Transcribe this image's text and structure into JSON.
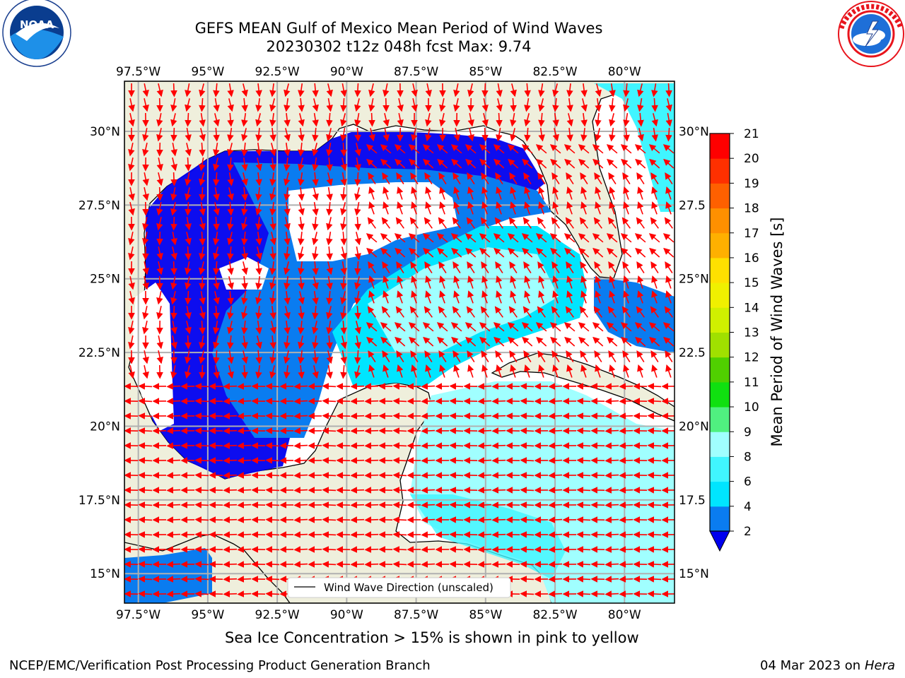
{
  "title": {
    "line1": "GEFS MEAN Gulf of Mexico Mean Period of Wind Waves",
    "line2": "20230302 t12z 048h fcst   Max: 9.74"
  },
  "logos": {
    "left": {
      "icon": "noaa-logo-icon",
      "text": "NOAA",
      "ring_text": "NATIONAL OCEANIC AND ATMOSPHERIC ADMINISTRATION · U.S. DEPARTMENT OF COMMERCE",
      "color": "#0a3d8f"
    },
    "right": {
      "icon": "nws-logo-icon",
      "ring_text": "NATIONAL WEATHER SERVICE",
      "color": "#e8141c"
    }
  },
  "map": {
    "lon_ticks": [
      "97.5°W",
      "95°W",
      "92.5°W",
      "90°W",
      "87.5°W",
      "85°W",
      "82.5°W",
      "80°W"
    ],
    "lon_values": [
      -97.5,
      -95,
      -92.5,
      -90,
      -87.5,
      -85,
      -82.5,
      -80
    ],
    "lat_ticks_left": [
      "30°N",
      "27.5°N",
      "25°N",
      "22.5°N",
      "20°N",
      "17.5°N",
      "15°N"
    ],
    "lat_ticks_right": [
      "30°N",
      "27.5",
      "25°N",
      "22.5",
      "20°N",
      "17.5",
      "15°N"
    ],
    "lat_values": [
      30,
      27.5,
      25,
      22.5,
      20,
      17.5,
      15
    ],
    "lon_range": [
      -98,
      -78.2
    ],
    "lat_range": [
      14,
      31.7
    ],
    "land_color": "#efefdc",
    "arrow_color": "#ff0000",
    "legend_label": "Wind Wave Direction (unscaled)"
  },
  "colorbar": {
    "label": "Mean Period of Wind Waves [s]",
    "ticks": [
      "2",
      "4",
      "6",
      "8",
      "9",
      "10",
      "11",
      "12",
      "13",
      "14",
      "15",
      "16",
      "17",
      "18",
      "19",
      "20",
      "21"
    ],
    "colors": [
      "#0a7cf0",
      "#00e5ff",
      "#40f5ff",
      "#a0ffff",
      "#50f080",
      "#10e010",
      "#50d000",
      "#a0e000",
      "#d0f000",
      "#f0f000",
      "#ffe000",
      "#ffb000",
      "#ff9000",
      "#ff6000",
      "#ff3000",
      "#ff0000"
    ],
    "extend_color": "#0000ee"
  },
  "captions": {
    "ice_note": "Sea Ice Concentration > 15% is shown in pink to yellow",
    "footer_left": "NCEP/EMC/Verification Post Processing Product Generation Branch",
    "footer_date": "04 Mar 2023 on",
    "footer_host": "Hera"
  }
}
